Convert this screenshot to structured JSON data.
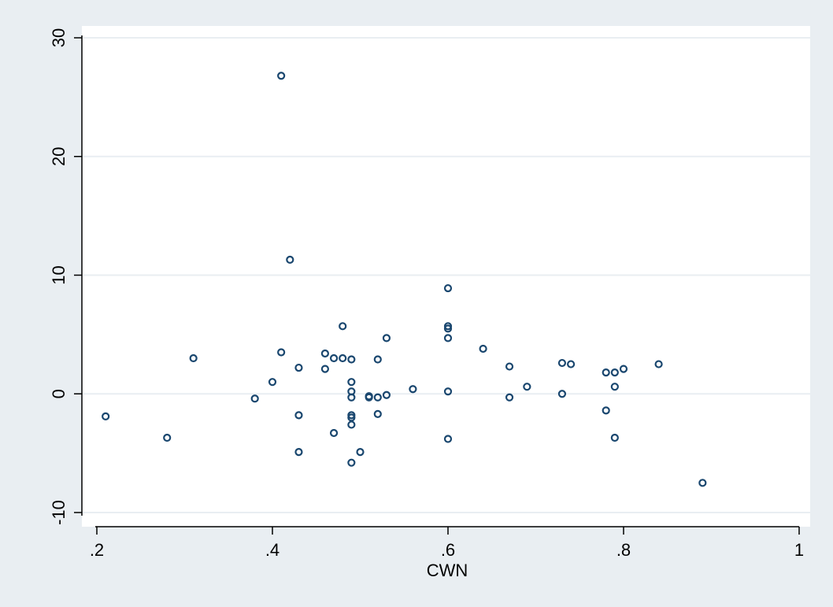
{
  "chart_data": {
    "type": "scatter",
    "title": "",
    "xlabel": "CWN",
    "ylabel": "",
    "xlim": [
      0.2,
      1.0
    ],
    "ylim": [
      -10,
      30
    ],
    "xticks": [
      0.2,
      0.4,
      0.6,
      0.8,
      1.0
    ],
    "xtick_labels": [
      ".2",
      ".4",
      ".6",
      ".8",
      "1"
    ],
    "yticks": [
      -10,
      0,
      10,
      20,
      30
    ],
    "ytick_labels": [
      "-10",
      "0",
      "10",
      "20",
      "30"
    ],
    "grid": "horizontal",
    "legend": "none",
    "colors": {
      "background": "#e9eef2",
      "plot_area": "#ffffff",
      "marker": "#1a476f",
      "grid": "#e9eef2",
      "axis": "#000000"
    },
    "points": [
      {
        "x": 0.21,
        "y": -1.9
      },
      {
        "x": 0.28,
        "y": -3.7
      },
      {
        "x": 0.31,
        "y": 3.0
      },
      {
        "x": 0.38,
        "y": -0.4
      },
      {
        "x": 0.4,
        "y": 1.0
      },
      {
        "x": 0.41,
        "y": 26.8
      },
      {
        "x": 0.41,
        "y": 3.5
      },
      {
        "x": 0.42,
        "y": 11.3
      },
      {
        "x": 0.43,
        "y": 2.2
      },
      {
        "x": 0.43,
        "y": -1.8
      },
      {
        "x": 0.43,
        "y": -4.9
      },
      {
        "x": 0.46,
        "y": 3.4
      },
      {
        "x": 0.46,
        "y": 2.1
      },
      {
        "x": 0.47,
        "y": 3.0
      },
      {
        "x": 0.47,
        "y": -3.3
      },
      {
        "x": 0.48,
        "y": 5.7
      },
      {
        "x": 0.48,
        "y": 3.0
      },
      {
        "x": 0.49,
        "y": 2.9
      },
      {
        "x": 0.49,
        "y": 1.0
      },
      {
        "x": 0.49,
        "y": 0.2
      },
      {
        "x": 0.49,
        "y": -0.3
      },
      {
        "x": 0.49,
        "y": -1.8
      },
      {
        "x": 0.49,
        "y": -2.0
      },
      {
        "x": 0.49,
        "y": -2.6
      },
      {
        "x": 0.49,
        "y": -5.8
      },
      {
        "x": 0.5,
        "y": -4.9
      },
      {
        "x": 0.51,
        "y": -0.2
      },
      {
        "x": 0.51,
        "y": -0.3
      },
      {
        "x": 0.52,
        "y": 2.9
      },
      {
        "x": 0.52,
        "y": -0.3
      },
      {
        "x": 0.52,
        "y": -1.7
      },
      {
        "x": 0.53,
        "y": 4.7
      },
      {
        "x": 0.53,
        "y": -0.1
      },
      {
        "x": 0.56,
        "y": 0.4
      },
      {
        "x": 0.6,
        "y": 8.9
      },
      {
        "x": 0.6,
        "y": 5.7
      },
      {
        "x": 0.6,
        "y": 5.5
      },
      {
        "x": 0.6,
        "y": 4.7
      },
      {
        "x": 0.6,
        "y": 0.2
      },
      {
        "x": 0.6,
        "y": -3.8
      },
      {
        "x": 0.64,
        "y": 3.8
      },
      {
        "x": 0.67,
        "y": 2.3
      },
      {
        "x": 0.67,
        "y": -0.3
      },
      {
        "x": 0.69,
        "y": 0.6
      },
      {
        "x": 0.73,
        "y": 2.6
      },
      {
        "x": 0.73,
        "y": 0.0
      },
      {
        "x": 0.74,
        "y": 2.5
      },
      {
        "x": 0.78,
        "y": 1.8
      },
      {
        "x": 0.78,
        "y": -1.4
      },
      {
        "x": 0.79,
        "y": 1.8
      },
      {
        "x": 0.79,
        "y": 0.6
      },
      {
        "x": 0.79,
        "y": -3.7
      },
      {
        "x": 0.8,
        "y": 2.1
      },
      {
        "x": 0.84,
        "y": 2.5
      },
      {
        "x": 0.89,
        "y": -7.5
      }
    ]
  }
}
